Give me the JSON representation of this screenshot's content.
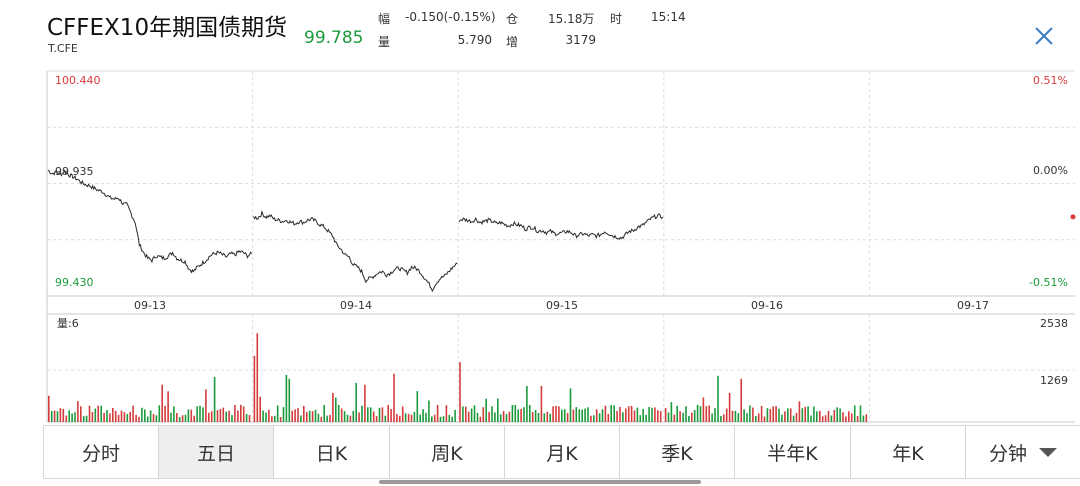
{
  "header": {
    "title": "CFFEX10年期国债期货",
    "code": "T.CFE",
    "price": "99.785",
    "stats": {
      "change_label": "幅",
      "change_value": "-0.150(-0.15%)",
      "oi_label": "仓",
      "oi_value": "15.18万",
      "time_label": "时",
      "time_value": "15:14",
      "volume_label": "量",
      "volume_value": "5.790",
      "oi_change_label": "增",
      "oi_change_value": "3179"
    },
    "close_icon": "close-icon"
  },
  "chart_data": [
    {
      "type": "line",
      "title": "五日分时",
      "x_categories": [
        "09-13",
        "09-14",
        "09-15",
        "09-16",
        "09-17"
      ],
      "y_left_ticks": [
        "100.440",
        "99.935",
        "99.430"
      ],
      "y_right_ticks": [
        "0.51%",
        "0.00%",
        "-0.51%"
      ],
      "ylim": [
        99.43,
        100.44
      ],
      "reference": 99.935,
      "days": [
        [
          99.995,
          99.98,
          99.985,
          99.975,
          99.99,
          99.975,
          99.965,
          99.955,
          99.94,
          99.93,
          99.925,
          99.915,
          99.905,
          99.9,
          99.885,
          99.87,
          99.865,
          99.87,
          99.845,
          99.84,
          99.8,
          99.76,
          99.66,
          99.625,
          99.6,
          99.59,
          99.61,
          99.605,
          99.6,
          99.61,
          99.625,
          99.6,
          99.59,
          99.585,
          99.55,
          99.54,
          99.56,
          99.575,
          99.59,
          99.61,
          99.62,
          99.625,
          99.615,
          99.605,
          99.62,
          99.615,
          99.63,
          99.625,
          99.61,
          99.62
        ],
        [
          99.785,
          99.78,
          99.8,
          99.785,
          99.79,
          99.775,
          99.77,
          99.765,
          99.77,
          99.76,
          99.755,
          99.765,
          99.76,
          99.77,
          99.775,
          99.765,
          99.75,
          99.74,
          99.72,
          99.7,
          99.66,
          99.64,
          99.615,
          99.605,
          99.57,
          99.56,
          99.54,
          99.5,
          99.51,
          99.52,
          99.535,
          99.54,
          99.525,
          99.535,
          99.55,
          99.555,
          99.545,
          99.535,
          99.56,
          99.555,
          99.54,
          99.515,
          99.49,
          99.46,
          99.49,
          99.51,
          99.52,
          99.54,
          99.56,
          99.575
        ],
        [
          99.77,
          99.775,
          99.77,
          99.765,
          99.775,
          99.76,
          99.765,
          99.77,
          99.765,
          99.755,
          99.76,
          99.75,
          99.745,
          99.755,
          99.75,
          99.745,
          99.73,
          99.74,
          99.735,
          99.72,
          99.725,
          99.715,
          99.72,
          99.71,
          99.71,
          99.715,
          99.72,
          99.715,
          99.7,
          99.705,
          99.71,
          99.7,
          99.705,
          99.7,
          99.705,
          99.72,
          99.71,
          99.7,
          99.695,
          99.69,
          99.705,
          99.72,
          99.725,
          99.74,
          99.745,
          99.76,
          99.775,
          99.785,
          99.79,
          99.785
        ]
      ]
    },
    {
      "type": "bar",
      "title": "量",
      "label": "量:6",
      "y_ticks": [
        "2538",
        "1269"
      ],
      "ylim": [
        0,
        2538
      ]
    }
  ],
  "tabs": [
    {
      "label": "分时",
      "active": false
    },
    {
      "label": "五日",
      "active": true
    },
    {
      "label": "日K",
      "active": false
    },
    {
      "label": "周K",
      "active": false
    },
    {
      "label": "月K",
      "active": false
    },
    {
      "label": "季K",
      "active": false
    },
    {
      "label": "半年K",
      "active": false
    },
    {
      "label": "年K",
      "active": false
    },
    {
      "label": "分钟",
      "active": false,
      "dropdown": true
    }
  ],
  "colors": {
    "up": "#d63b3b",
    "down": "#1b9a3c",
    "grid": "#dcdcdc",
    "line": "#2a2a2a"
  }
}
